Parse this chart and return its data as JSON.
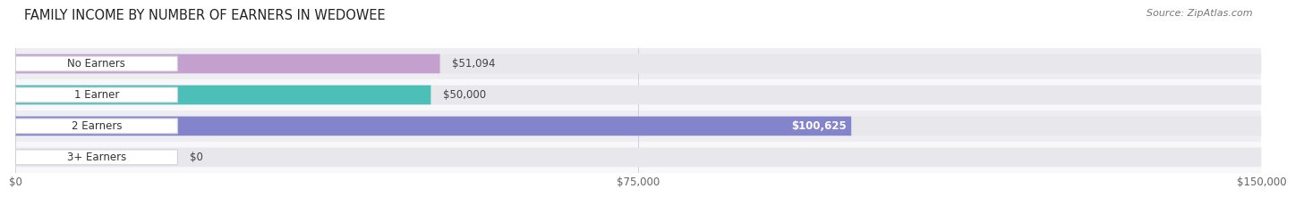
{
  "title": "FAMILY INCOME BY NUMBER OF EARNERS IN WEDOWEE",
  "source": "Source: ZipAtlas.com",
  "categories": [
    "No Earners",
    "1 Earner",
    "2 Earners",
    "3+ Earners"
  ],
  "values": [
    51094,
    50000,
    100625,
    0
  ],
  "bar_colors": [
    "#c4a0cf",
    "#4bbfb8",
    "#8484cc",
    "#f29ab4"
  ],
  "bar_bg_color": "#e8e8ec",
  "x_max": 150000,
  "x_ticks": [
    0,
    75000,
    150000
  ],
  "x_tick_labels": [
    "$0",
    "$75,000",
    "$150,000"
  ],
  "title_fontsize": 10.5,
  "source_fontsize": 8,
  "label_fontsize": 8.5,
  "value_fontsize": 8.5,
  "background_color": "#ffffff",
  "row_bg_colors": [
    "#f0f0f5",
    "#ffffff",
    "#f0f0f5",
    "#ffffff",
    "#f0f0f5"
  ]
}
